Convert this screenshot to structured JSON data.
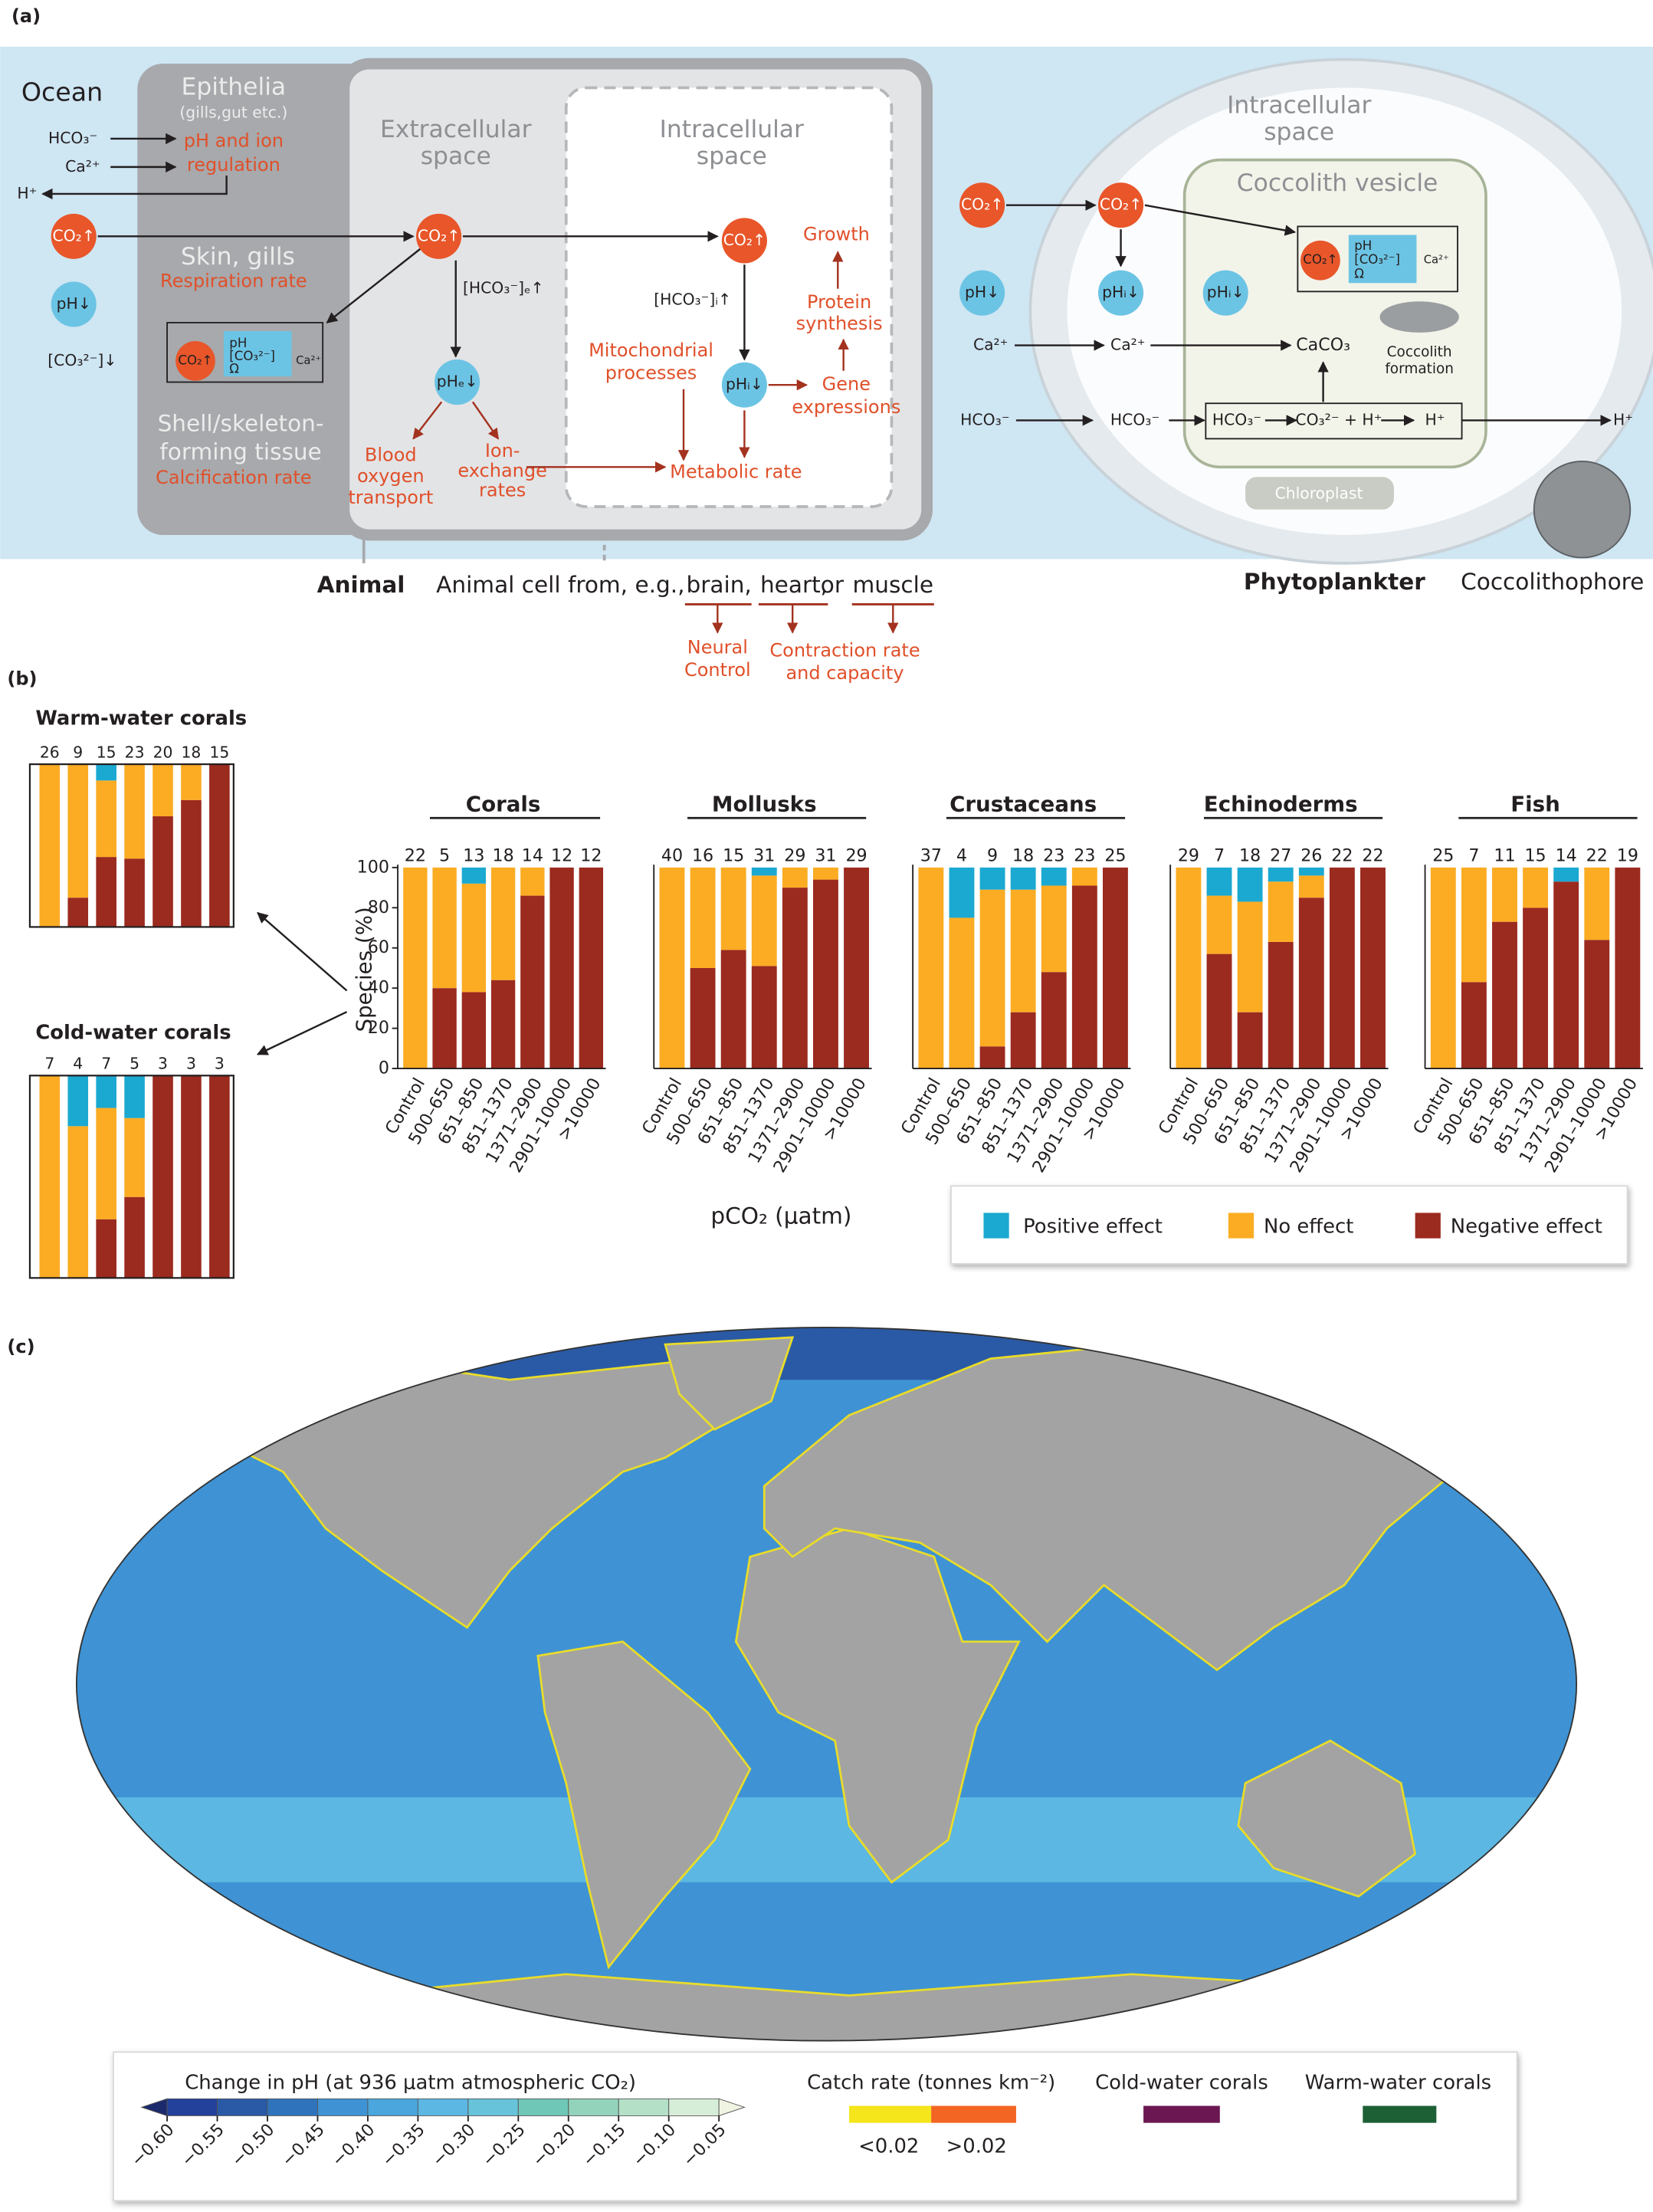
{
  "panel_a": {
    "label": "(a)",
    "ocean": "Ocean",
    "epithelia": "Epithelia",
    "epithelia_note": "(gills,gut etc.)",
    "ph_ion": [
      "pH and ion",
      "regulation"
    ],
    "hco3_in": "HCO₃⁻",
    "ca_in": "Ca²⁺",
    "h_out": "H⁺",
    "co2_ocean": "CO₂↑",
    "ph_ocean": "pH↓",
    "co3_ocean": "[CO₃²⁻]↓",
    "skin": "Skin, gills",
    "respiration": "Respiration rate",
    "shell": [
      "Shell/skeleton-",
      "forming tissue"
    ],
    "calcification": "Calcification rate",
    "shell_box": {
      "co2": "CO₂↑",
      "ph": "pH",
      "co3": "[CO₃²⁻]",
      "omega": "Ω",
      "ca": "Ca²⁺"
    },
    "extracellular": [
      "Extracellular",
      "space"
    ],
    "co2_e": "CO₂↑",
    "hco3_e": "[HCO₃⁻]ₑ↑",
    "ph_e": "pHₑ↓",
    "blood": [
      "Blood",
      "oxygen",
      "transport"
    ],
    "ion_ex": [
      "Ion-",
      "exchange",
      "rates"
    ],
    "intracellular": [
      "Intracellular",
      "space"
    ],
    "co2_i": "CO₂↑",
    "hco3_i": "[HCO₃⁻]ᵢ↑",
    "ph_i": "pHᵢ↓",
    "mito": [
      "Mitochondrial",
      "processes"
    ],
    "growth": "Growth",
    "protein": [
      "Protein",
      "synthesis"
    ],
    "gene": [
      "Gene",
      "expressions"
    ],
    "metabolic": "Metabolic rate",
    "animal": "Animal",
    "animal_cell": "Animal cell from, e.g.,",
    "brain": "brain,",
    "heart": "heart,",
    "or": "or",
    "muscle": "muscle",
    "neural": [
      "Neural",
      "Control"
    ],
    "contraction": [
      "Contraction rate",
      "and capacity"
    ],
    "phyto": "Phytoplankter",
    "cocco": "Coccolithophore",
    "p_intracellular": [
      "Intracellular",
      "space"
    ],
    "vesicle": "Coccolith vesicle",
    "p_co2_out": "CO₂↑",
    "p_co2_in": "CO₂↑",
    "p_ph_out": "pH↓",
    "p_ph_i": "pHᵢ↓",
    "p_ph_v": "pHᵢ↓",
    "v_box": {
      "co2": "CO₂↑",
      "ph": "pH",
      "co3": "[CO₃²⁻]",
      "omega": "Ω",
      "ca": "Ca²⁺"
    },
    "ca_out": "Ca²⁺",
    "ca_mid": "Ca²⁺",
    "caco3": "CaCO₃",
    "coccolith_formation": [
      "Coccolith",
      "formation"
    ],
    "hco3_out": "HCO₃⁻",
    "hco3_mid": "HCO₃⁻",
    "reaction": [
      "HCO₃⁻",
      "CO₃²⁻ + H⁺",
      "H⁺"
    ],
    "h_final": "H⁺",
    "chloroplast": "Chloroplast"
  },
  "panel_b": {
    "label": "(b)",
    "ylabel": "Species (%)",
    "xlabel": "pCO₂ (μatm)",
    "legend": [
      {
        "name": "Positive effect",
        "color": "#1ba9d1"
      },
      {
        "name": "No effect",
        "color": "#fbac23"
      },
      {
        "name": "Negative effect",
        "color": "#9b2a1f"
      }
    ]
  },
  "chart_data": [
    {
      "type": "bar",
      "stacked": true,
      "title": "Warm-water corals",
      "ylim": [
        0,
        100
      ],
      "counts": [
        26,
        9,
        15,
        23,
        20,
        18,
        15
      ],
      "series": [
        {
          "values": [
            0,
            0,
            10,
            0,
            0,
            0,
            0
          ]
        },
        {
          "values": [
            100,
            82,
            47,
            58,
            32,
            22,
            0
          ]
        },
        {
          "values": [
            0,
            18,
            43,
            42,
            68,
            78,
            100
          ]
        }
      ]
    },
    {
      "type": "bar",
      "stacked": true,
      "title": "Cold-water corals",
      "ylim": [
        0,
        100
      ],
      "counts": [
        7,
        4,
        7,
        5,
        3,
        3,
        3
      ],
      "series": [
        {
          "values": [
            0,
            25,
            16,
            21,
            0,
            0,
            0
          ]
        },
        {
          "values": [
            100,
            75,
            55,
            39,
            0,
            0,
            0
          ]
        },
        {
          "values": [
            0,
            0,
            29,
            40,
            100,
            100,
            100
          ]
        }
      ]
    },
    {
      "type": "bar",
      "stacked": true,
      "title": "Corals",
      "ylim": [
        0,
        100
      ],
      "yticks": [
        0,
        20,
        40,
        60,
        80,
        100
      ],
      "categories": [
        "Control",
        "500–650",
        "651–850",
        "851–1370",
        "1371–2900",
        "2901–10000",
        ">10000"
      ],
      "counts": [
        22,
        5,
        13,
        18,
        14,
        12,
        12
      ],
      "series": [
        {
          "values": [
            0,
            0,
            8,
            0,
            0,
            0,
            0
          ]
        },
        {
          "values": [
            100,
            60,
            54,
            56,
            14,
            0,
            0
          ]
        },
        {
          "values": [
            0,
            40,
            38,
            44,
            86,
            100,
            100
          ]
        }
      ]
    },
    {
      "type": "bar",
      "stacked": true,
      "title": "Mollusks",
      "ylim": [
        0,
        100
      ],
      "categories": [
        "Control",
        "500–650",
        "651–850",
        "851–1370",
        "1371–2900",
        "2901–10000",
        ">10000"
      ],
      "counts": [
        40,
        16,
        15,
        31,
        29,
        31,
        29
      ],
      "series": [
        {
          "values": [
            0,
            0,
            0,
            4,
            0,
            0,
            0
          ]
        },
        {
          "values": [
            100,
            50,
            41,
            45,
            10,
            6,
            0
          ]
        },
        {
          "values": [
            0,
            50,
            59,
            51,
            90,
            94,
            100
          ]
        }
      ]
    },
    {
      "type": "bar",
      "stacked": true,
      "title": "Crustaceans",
      "ylim": [
        0,
        100
      ],
      "categories": [
        "Control",
        "500–650",
        "651–850",
        "851–1370",
        "1371–2900",
        "2901–10000",
        ">10000"
      ],
      "counts": [
        37,
        4,
        9,
        18,
        23,
        23,
        25
      ],
      "series": [
        {
          "values": [
            0,
            25,
            11,
            11,
            9,
            0,
            0
          ]
        },
        {
          "values": [
            100,
            75,
            78,
            61,
            43,
            9,
            0
          ]
        },
        {
          "values": [
            0,
            0,
            11,
            28,
            48,
            91,
            100
          ]
        }
      ]
    },
    {
      "type": "bar",
      "stacked": true,
      "title": "Echinoderms",
      "ylim": [
        0,
        100
      ],
      "categories": [
        "Control",
        "500–650",
        "651–850",
        "851–1370",
        "1371–2900",
        "2901–10000",
        ">10000"
      ],
      "counts": [
        29,
        7,
        18,
        27,
        26,
        22,
        22
      ],
      "series": [
        {
          "values": [
            0,
            14,
            17,
            7,
            4,
            0,
            0
          ]
        },
        {
          "values": [
            100,
            29,
            55,
            30,
            11,
            0,
            0
          ]
        },
        {
          "values": [
            0,
            57,
            28,
            63,
            85,
            100,
            100
          ]
        }
      ]
    },
    {
      "type": "bar",
      "stacked": true,
      "title": "Fish",
      "ylim": [
        0,
        100
      ],
      "categories": [
        "Control",
        "500–650",
        "651–850",
        "851–1370",
        "1371–2900",
        "2901–10000",
        ">10000"
      ],
      "counts": [
        25,
        7,
        11,
        15,
        14,
        22,
        19
      ],
      "series": [
        {
          "values": [
            0,
            0,
            0,
            0,
            7,
            0,
            0
          ]
        },
        {
          "values": [
            100,
            57,
            27,
            20,
            0,
            36,
            0
          ]
        },
        {
          "values": [
            0,
            43,
            73,
            80,
            93,
            64,
            100
          ]
        }
      ]
    }
  ],
  "panel_c": {
    "label": "(c)",
    "colorbar": {
      "title": "Change in pH (at 936 μatm atmospheric CO₂)",
      "lim": [
        -0.6,
        -0.05
      ],
      "ticks": [
        {
          "value": -0.6,
          "label": "−0.60"
        },
        {
          "value": -0.55,
          "label": "−0.55"
        },
        {
          "value": -0.5,
          "label": "−0.50"
        },
        {
          "value": -0.45,
          "label": "−0.45"
        },
        {
          "value": -0.4,
          "label": "−0.40"
        },
        {
          "value": -0.35,
          "label": "−0.35"
        },
        {
          "value": -0.3,
          "label": "−0.30"
        },
        {
          "value": -0.25,
          "label": "−0.25"
        },
        {
          "value": -0.2,
          "label": "−0.20"
        },
        {
          "value": -0.15,
          "label": "−0.15"
        },
        {
          "value": -0.1,
          "label": "−0.10"
        },
        {
          "value": -0.05,
          "label": "−0.05"
        }
      ],
      "colors": [
        "#1b2a6b",
        "#23409a",
        "#2a5aa6",
        "#2f73bd",
        "#3f93d4",
        "#4aa6dc",
        "#5cb7e2",
        "#67c3d9",
        "#6fc7b8",
        "#93d3bb",
        "#b4e0c8",
        "#d6eed8",
        "#f0f5e3"
      ]
    },
    "catch": {
      "title": "Catch rate (tonnes km⁻²)",
      "items": [
        {
          "label": "<0.02",
          "color": "#f5e51b"
        },
        {
          "label": ">0.02",
          "color": "#f26522"
        }
      ]
    },
    "cold_corals": {
      "name": "Cold-water corals",
      "color": "#6b1752"
    },
    "warm_corals": {
      "name": "Warm-water corals",
      "color": "#1d6035"
    }
  }
}
